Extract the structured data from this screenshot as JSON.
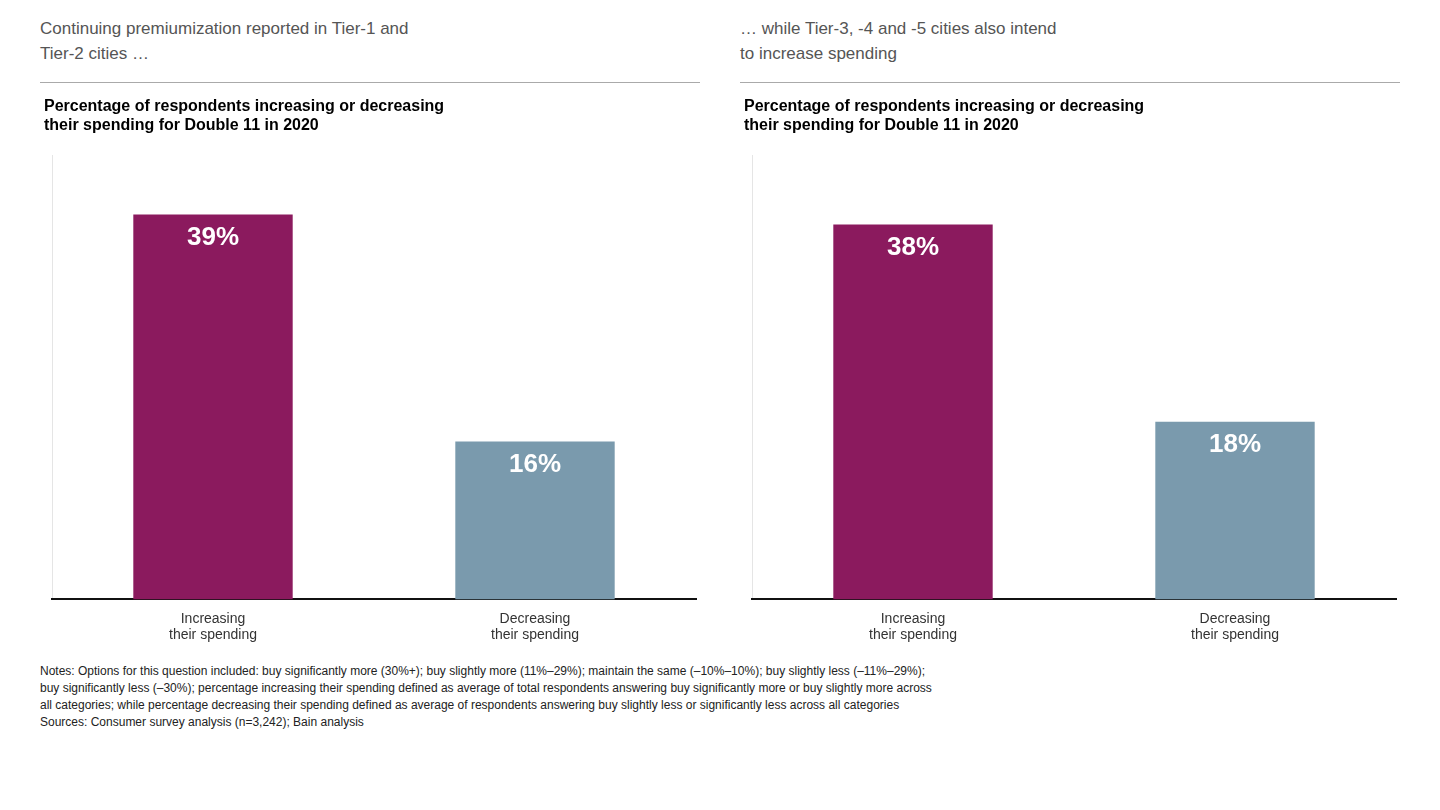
{
  "chart_data": [
    {
      "type": "bar",
      "subtitle": "Continuing premiumization reported in Tier-1 and\nTier-2 cities …",
      "title": "Percentage of respondents increasing or decreasing\ntheir spending for Double 11 in 2020",
      "categories": [
        "Increasing\ntheir spending",
        "Decreasing\ntheir spending"
      ],
      "values": [
        39,
        16
      ],
      "value_labels": [
        "39%",
        "16%"
      ],
      "colors": [
        "#8B1A5E",
        "#7A9AAD"
      ],
      "ylim": [
        0,
        45
      ],
      "data_labels": true,
      "tick_labels": "x",
      "grid": false
    },
    {
      "type": "bar",
      "subtitle": "… while Tier-3, -4 and -5 cities also intend\nto increase spending",
      "title": "Percentage of respondents increasing or decreasing\ntheir spending for Double 11 in 2020",
      "categories": [
        "Increasing\ntheir spending",
        "Decreasing\ntheir spending"
      ],
      "values": [
        38,
        18
      ],
      "value_labels": [
        "38%",
        "18%"
      ],
      "colors": [
        "#8B1A5E",
        "#7A9AAD"
      ],
      "ylim": [
        0,
        45
      ],
      "data_labels": true,
      "tick_labels": "x",
      "grid": false
    }
  ],
  "annotations": [
    "Notes: Options for this question included: buy significantly more (30%+); buy slightly more (11%–29%); maintain the same (–10%–10%); buy slightly less (–11%–29%);",
    "buy significantly less (–30%); percentage increasing their spending defined as average of total respondents answering buy significantly more or buy slightly more across",
    "all categories; while percentage decreasing their spending defined as average of respondents answering buy slightly less or significantly less across all categories",
    "Sources: Consumer survey analysis (n=3,242); Bain analysis"
  ]
}
